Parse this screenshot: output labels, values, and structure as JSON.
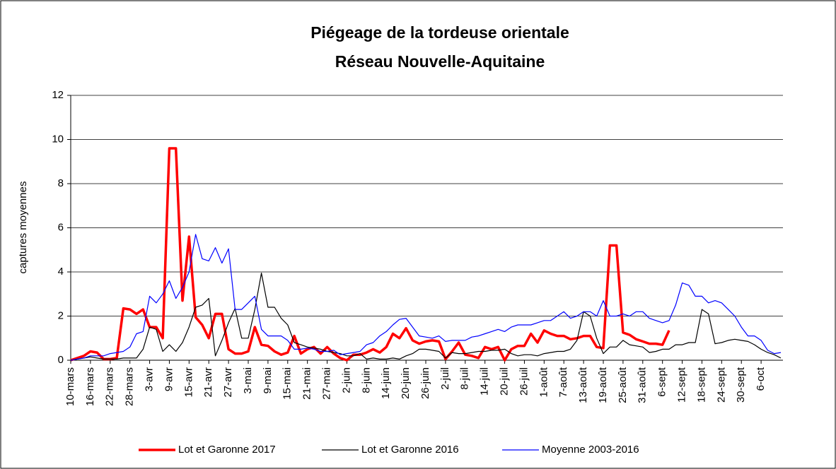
{
  "chart_data": {
    "type": "line",
    "title": "Piégeage de la tordeuse orientale",
    "subtitle": "Réseau Nouvelle-Aquitaine",
    "ylabel": "captures moyennes",
    "categories": [
      "10-mars",
      null,
      null,
      "16-mars",
      null,
      null,
      "22-mars",
      null,
      null,
      "28-mars",
      null,
      null,
      "3-avr",
      null,
      null,
      "9-avr",
      null,
      null,
      "15-avr",
      null,
      null,
      "21-avr",
      null,
      null,
      "27-avr",
      null,
      null,
      "3-mai",
      null,
      null,
      "9-mai",
      null,
      null,
      "15-mai",
      null,
      null,
      "21-mai",
      null,
      null,
      "27-mai",
      null,
      null,
      "2-juin",
      null,
      null,
      "8-juin",
      null,
      null,
      "14-juin",
      null,
      null,
      "20-juin",
      null,
      null,
      "26-juin",
      null,
      null,
      "2-juil",
      null,
      null,
      "8-juil",
      null,
      null,
      "14-juil",
      null,
      null,
      "20-juil",
      null,
      null,
      "26-juil",
      null,
      null,
      "1-août",
      null,
      null,
      "7-août",
      null,
      null,
      "13-août",
      null,
      null,
      "19-août",
      null,
      null,
      "25-août",
      null,
      null,
      "31-août",
      null,
      null,
      "6-sept",
      null,
      null,
      "12-sept",
      null,
      null,
      "18-sept",
      null,
      null,
      "24-sept",
      null,
      null,
      "30-sept",
      null,
      null,
      "6-oct",
      null,
      null,
      null
    ],
    "series": [
      {
        "name": "Lot et Garonne 2017",
        "color": "#ff0000",
        "width": 3.5,
        "values": [
          0,
          0.1,
          0.2,
          0.4,
          0.35,
          0.05,
          0.05,
          0.1,
          2.35,
          2.3,
          2.1,
          2.3,
          1.5,
          1.5,
          1.0,
          9.6,
          9.6,
          2.7,
          5.6,
          1.95,
          1.6,
          1.0,
          2.1,
          2.1,
          0.5,
          0.3,
          0.3,
          0.4,
          1.5,
          0.7,
          0.65,
          0.4,
          0.25,
          0.35,
          1.1,
          0.3,
          0.5,
          0.6,
          0.3,
          0.6,
          0.3,
          0.1,
          0,
          0.25,
          0.25,
          0.35,
          0.5,
          0.35,
          0.6,
          1.2,
          1.0,
          1.45,
          0.9,
          0.75,
          0.85,
          0.9,
          0.85,
          0.05,
          0.4,
          0.8,
          0.25,
          0.2,
          0.1,
          0.6,
          0.5,
          0.6,
          0,
          0.5,
          0.65,
          0.65,
          1.2,
          0.8,
          1.35,
          1.2,
          1.1,
          1.1,
          0.95,
          1.0,
          1.1,
          1.1,
          0.6,
          0.55,
          5.2,
          5.2,
          1.25,
          1.15,
          0.95,
          0.85,
          0.75,
          0.75,
          0.7,
          1.35,
          null,
          null,
          null,
          null,
          null,
          null,
          null,
          null,
          null,
          null,
          null,
          null,
          null,
          null,
          null,
          null,
          null
        ]
      },
      {
        "name": "Lot et Garonne 2016",
        "color": "#000000",
        "width": 1.2,
        "values": [
          0,
          0.05,
          0.1,
          0.15,
          0.1,
          0.05,
          0.05,
          0.05,
          0.1,
          0.1,
          0.1,
          0.5,
          1.5,
          1.4,
          0.4,
          0.7,
          0.4,
          0.8,
          1.5,
          2.4,
          2.5,
          2.8,
          0.2,
          0.9,
          1.7,
          2.35,
          1.0,
          1.0,
          2.3,
          3.95,
          2.4,
          2.4,
          1.9,
          1.6,
          0.8,
          0.7,
          0.6,
          0.55,
          0.5,
          0.4,
          0.35,
          0.3,
          0.2,
          0.2,
          0.3,
          0.05,
          0.1,
          0.05,
          0.05,
          0.1,
          0.05,
          0.2,
          0.3,
          0.5,
          0.5,
          0.45,
          0.4,
          0.1,
          0.35,
          0.3,
          0.3,
          0.35,
          0.4,
          0.4,
          0.45,
          0.45,
          0.5,
          0.3,
          0.2,
          0.25,
          0.25,
          0.2,
          0.3,
          0.35,
          0.4,
          0.4,
          0.5,
          0.9,
          2.2,
          2.0,
          1.0,
          0.3,
          0.6,
          0.6,
          0.9,
          0.7,
          0.65,
          0.6,
          0.35,
          0.4,
          0.5,
          0.5,
          0.7,
          0.7,
          0.8,
          0.8,
          2.3,
          2.1,
          0.75,
          0.8,
          0.9,
          0.95,
          0.9,
          0.85,
          0.7,
          0.5,
          0.35,
          0.25,
          0.1
        ]
      },
      {
        "name": "Moyenne 2003-2016",
        "color": "#0000ff",
        "width": 1.2,
        "values": [
          0,
          0.05,
          0.1,
          0.2,
          0.2,
          0.2,
          0.3,
          0.35,
          0.4,
          0.6,
          1.2,
          1.3,
          2.9,
          2.6,
          3.0,
          3.6,
          2.8,
          3.3,
          4.0,
          5.7,
          4.6,
          4.5,
          5.1,
          4.4,
          5.05,
          2.3,
          2.3,
          2.6,
          2.9,
          1.4,
          1.1,
          1.1,
          1.1,
          0.9,
          0.5,
          0.5,
          0.55,
          0.5,
          0.4,
          0.4,
          0.45,
          0.25,
          0.3,
          0.35,
          0.4,
          0.7,
          0.8,
          1.1,
          1.3,
          1.6,
          1.85,
          1.9,
          1.5,
          1.1,
          1.05,
          1.0,
          1.1,
          0.85,
          0.9,
          0.9,
          0.9,
          1.05,
          1.1,
          1.2,
          1.3,
          1.4,
          1.3,
          1.5,
          1.6,
          1.6,
          1.6,
          1.7,
          1.8,
          1.8,
          2.0,
          2.2,
          1.9,
          2.0,
          2.2,
          2.2,
          2.0,
          2.7,
          2.0,
          2.0,
          2.1,
          2.0,
          2.2,
          2.2,
          1.9,
          1.8,
          1.7,
          1.8,
          2.5,
          3.5,
          3.4,
          2.9,
          2.9,
          2.6,
          2.7,
          2.6,
          2.3,
          2.0,
          1.5,
          1.1,
          1.1,
          0.9,
          0.45,
          0.3,
          0.35
        ]
      }
    ],
    "ylim": [
      0,
      12
    ],
    "yticks": [
      0,
      2,
      4,
      6,
      8,
      10,
      12
    ],
    "grid": true,
    "legend": "bottom"
  }
}
